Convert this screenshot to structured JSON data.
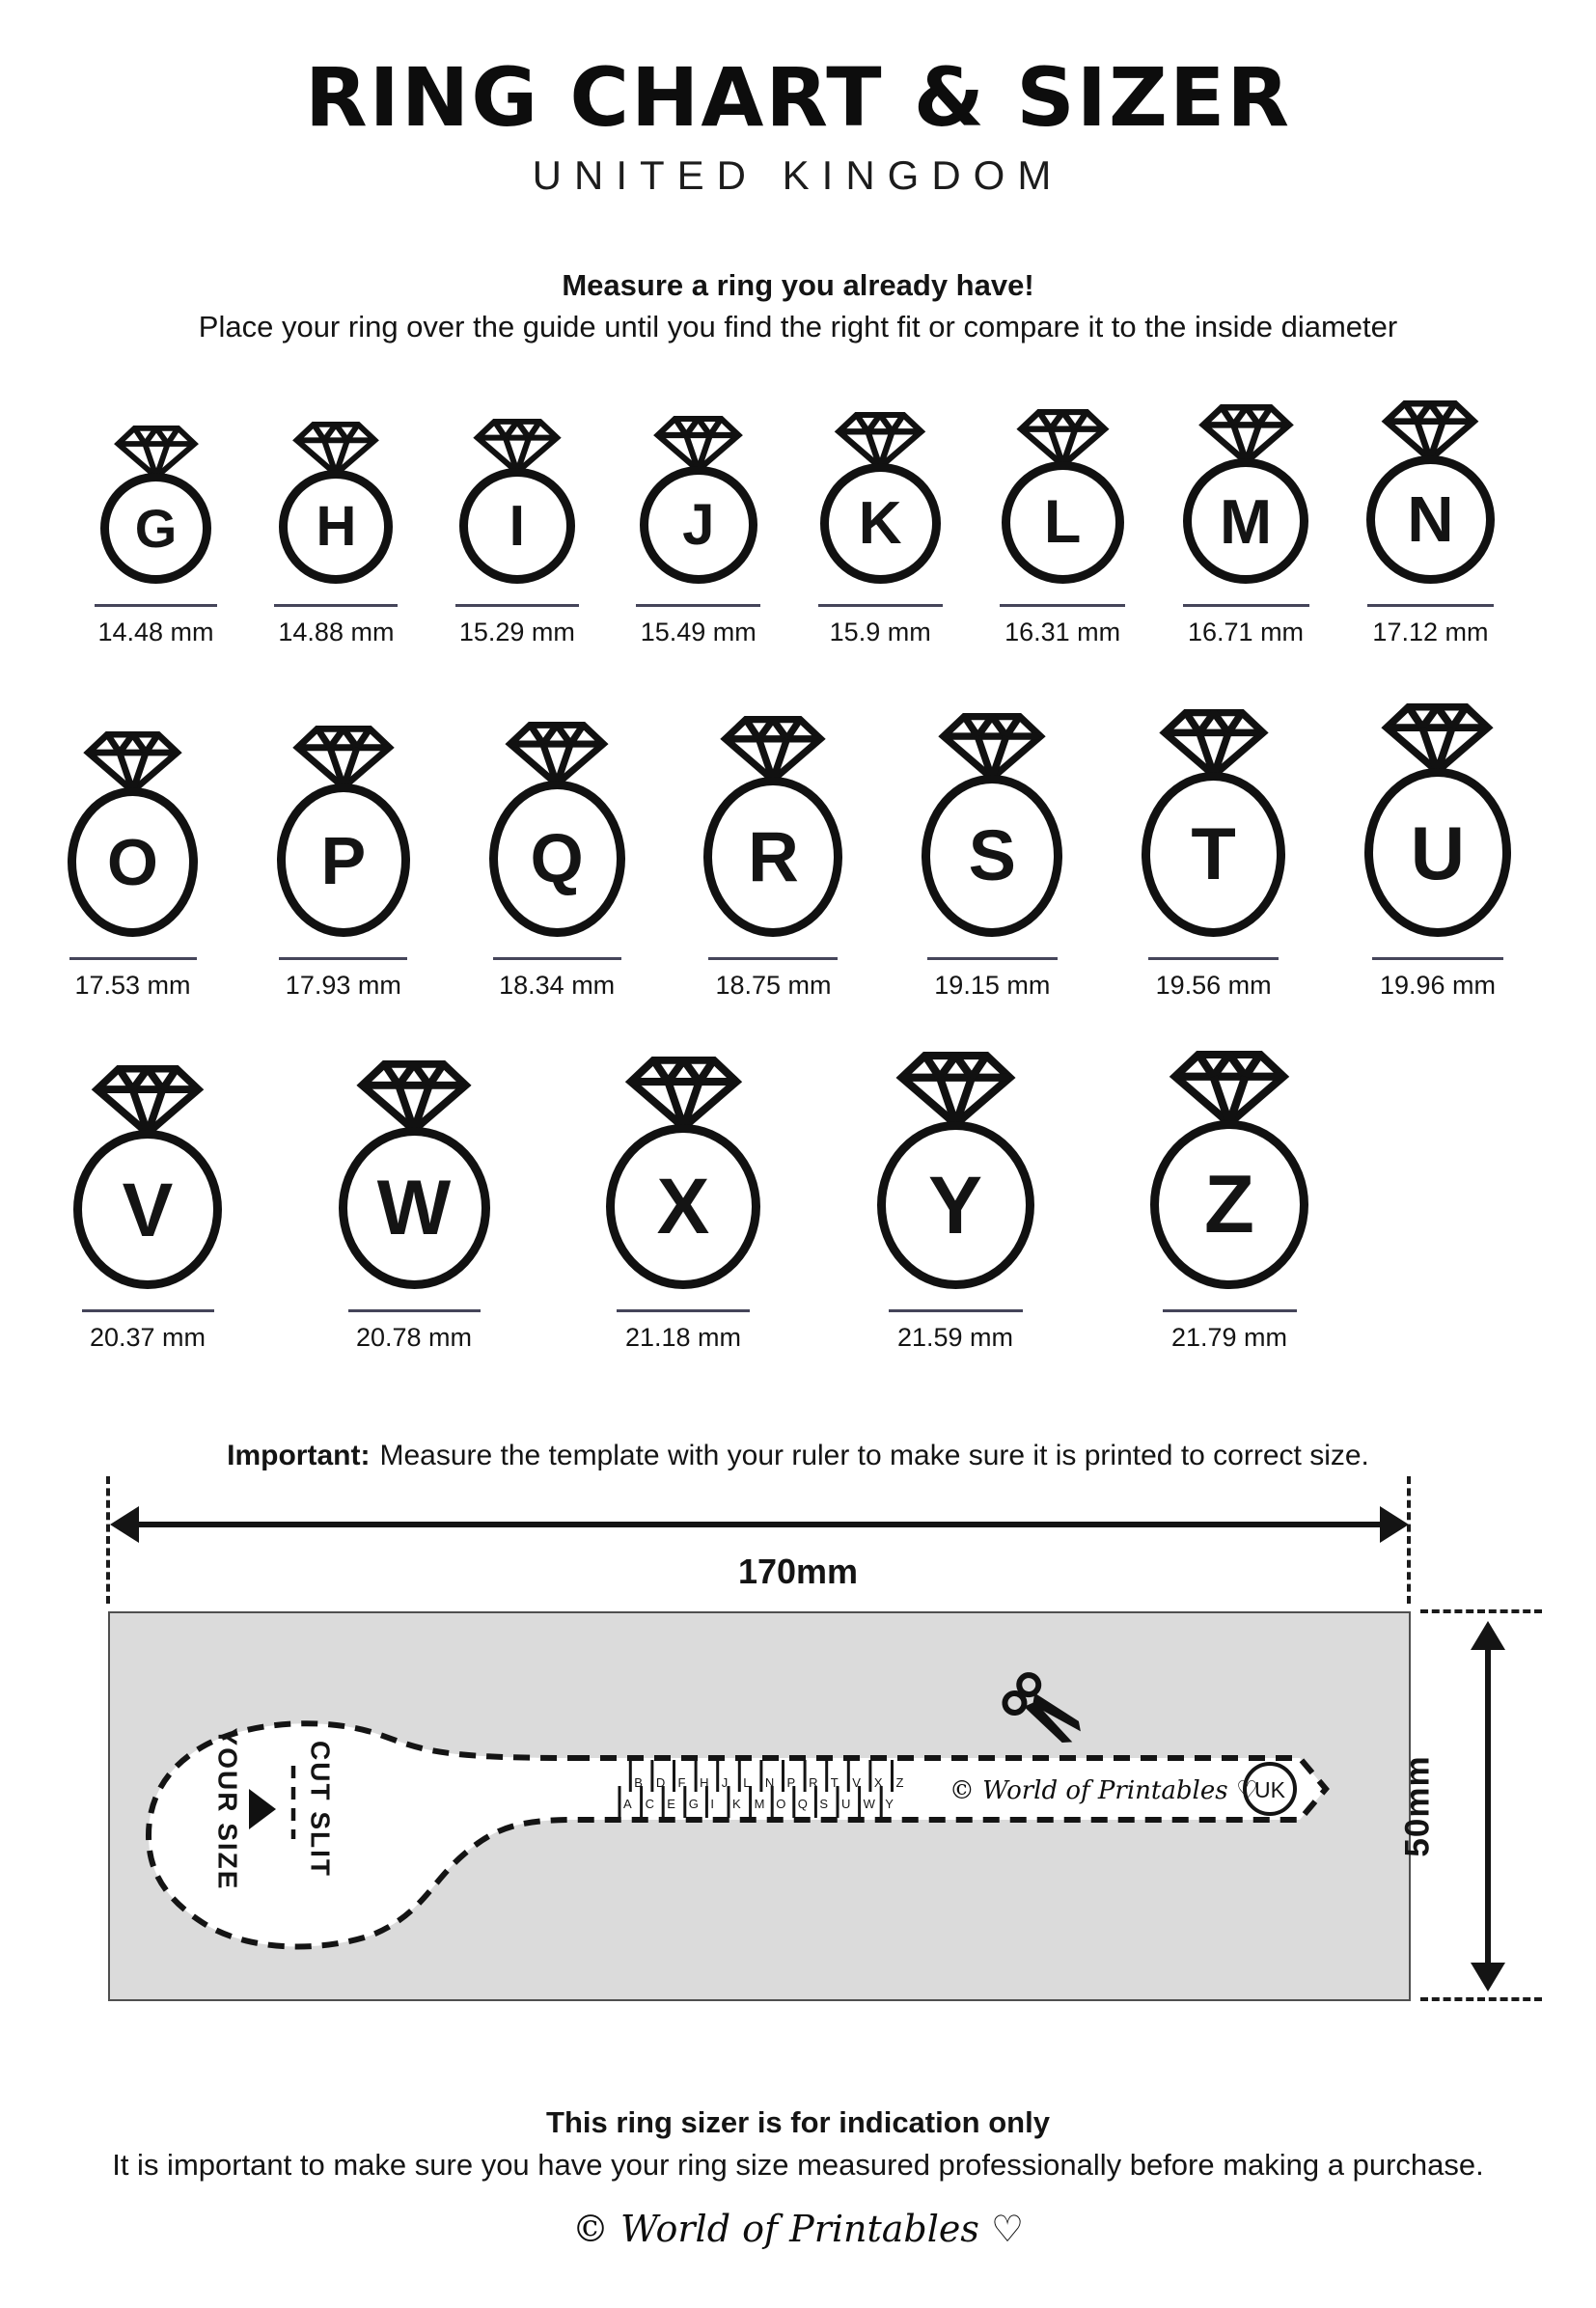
{
  "header": {
    "title": "RING CHART & SIZER",
    "subtitle": "UNITED KINGDOM"
  },
  "instructions": {
    "heading": "Measure a ring you already have!",
    "body": "Place your ring over the guide until you find the right fit or compare it to the inside diameter"
  },
  "rings": {
    "rows": [
      [
        {
          "letter": "G",
          "mm": 14.48,
          "label": "14.48 mm"
        },
        {
          "letter": "H",
          "mm": 14.88,
          "label": "14.88 mm"
        },
        {
          "letter": "I",
          "mm": 15.29,
          "label": "15.29 mm"
        },
        {
          "letter": "J",
          "mm": 15.49,
          "label": "15.49 mm"
        },
        {
          "letter": "K",
          "mm": 15.9,
          "label": "15.9 mm"
        },
        {
          "letter": "L",
          "mm": 16.31,
          "label": "16.31 mm"
        },
        {
          "letter": "M",
          "mm": 16.71,
          "label": "16.71 mm"
        },
        {
          "letter": "N",
          "mm": 17.12,
          "label": "17.12 mm"
        }
      ],
      [
        {
          "letter": "O",
          "mm": 17.53,
          "label": "17.53 mm"
        },
        {
          "letter": "P",
          "mm": 17.93,
          "label": "17.93 mm"
        },
        {
          "letter": "Q",
          "mm": 18.34,
          "label": "18.34 mm"
        },
        {
          "letter": "R",
          "mm": 18.75,
          "label": "18.75 mm"
        },
        {
          "letter": "S",
          "mm": 19.15,
          "label": "19.15 mm"
        },
        {
          "letter": "T",
          "mm": 19.56,
          "label": "19.56 mm"
        },
        {
          "letter": "U",
          "mm": 19.96,
          "label": "19.96 mm"
        }
      ],
      [
        {
          "letter": "V",
          "mm": 20.37,
          "label": "20.37 mm"
        },
        {
          "letter": "W",
          "mm": 20.78,
          "label": "20.78 mm"
        },
        {
          "letter": "X",
          "mm": 21.18,
          "label": "21.18 mm"
        },
        {
          "letter": "Y",
          "mm": 21.59,
          "label": "21.59 mm"
        },
        {
          "letter": "Z",
          "mm": 21.79,
          "label": "21.79 mm"
        }
      ]
    ]
  },
  "sizer": {
    "important_label": "Important:",
    "important_text": "Measure the template with your ruler to make sure it is printed to correct size.",
    "width_label": "170mm",
    "height_label": "50mm",
    "your_size_label": "YOUR SIZE",
    "cut_slit_label": "CUT SLIT",
    "scale_letters_top": [
      "B",
      "D",
      "F",
      "H",
      "J",
      "L",
      "N",
      "P",
      "R",
      "T",
      "V",
      "X",
      "Z"
    ],
    "scale_letters_bottom": [
      "A",
      "C",
      "E",
      "G",
      "I",
      "K",
      "M",
      "O",
      "Q",
      "S",
      "U",
      "W",
      "Y"
    ],
    "brand": "© World of Printables ♡",
    "country_badge": "UK"
  },
  "footer": {
    "heading": "This ring sizer is for indication only",
    "body": "It is important to make sure you have your ring size measured professionally before making a purchase.",
    "brand": "© World of Printables ♡"
  },
  "colors": {
    "ink": "#141414",
    "underline": "#45455a",
    "panel_gray": "#dbdbdb"
  }
}
